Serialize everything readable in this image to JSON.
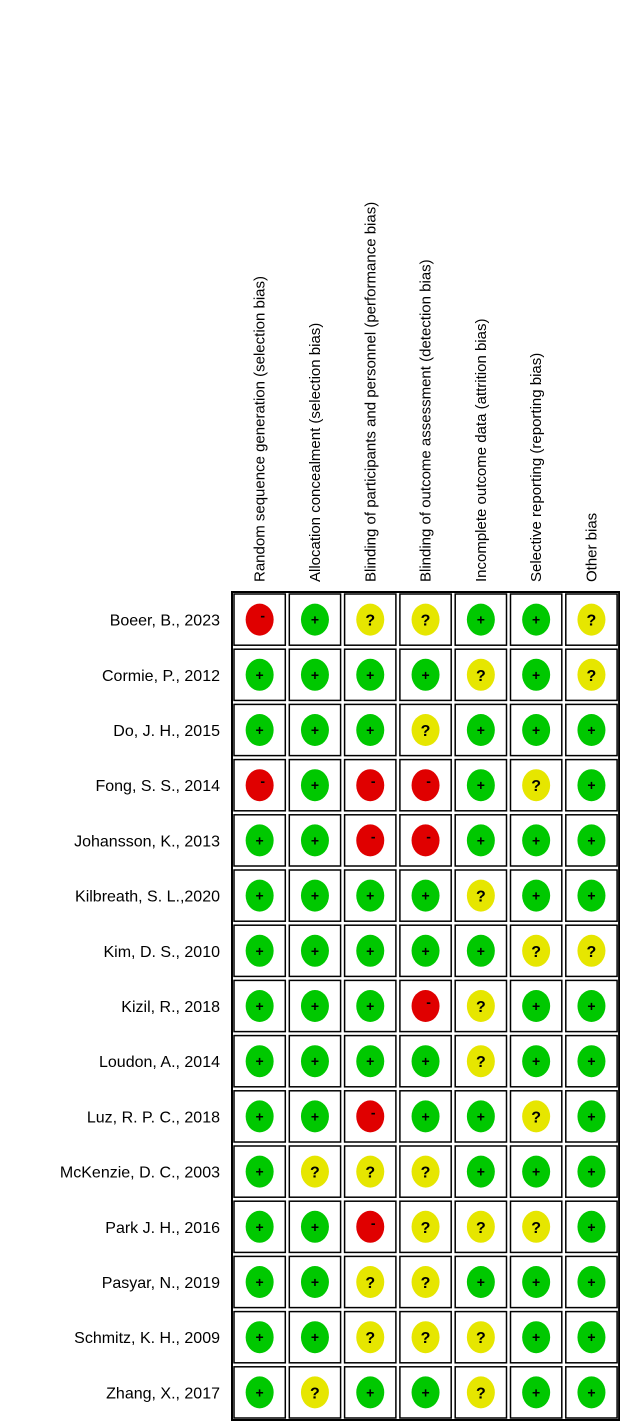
{
  "chart_data": {
    "type": "table",
    "columns": [
      "Random sequence generation (selection bias)",
      "Allocation concealment (selection bias)",
      "Blinding of participants and personnel (performance bias)",
      "Blinding of outcome assessment (detection bias)",
      "Incomplete outcome data (attrition bias)",
      "Selective reporting (reporting bias)",
      "Other bias"
    ],
    "rows": [
      {
        "study": "Boeer, B., 2023",
        "ratings": [
          "-",
          "+",
          "?",
          "?",
          "+",
          "+",
          "?"
        ]
      },
      {
        "study": "Cormie, P., 2012",
        "ratings": [
          "+",
          "+",
          "+",
          "+",
          "?",
          "+",
          "?"
        ]
      },
      {
        "study": "Do, J. H., 2015",
        "ratings": [
          "+",
          "+",
          "+",
          "?",
          "+",
          "+",
          "+"
        ]
      },
      {
        "study": "Fong, S. S., 2014",
        "ratings": [
          "-",
          "+",
          "-",
          "-",
          "+",
          "?",
          "+"
        ]
      },
      {
        "study": "Johansson, K., 2013",
        "ratings": [
          "+",
          "+",
          "-",
          "-",
          "+",
          "+",
          "+"
        ]
      },
      {
        "study": "Kilbreath, S. L.,2020",
        "ratings": [
          "+",
          "+",
          "+",
          "+",
          "?",
          "+",
          "+"
        ]
      },
      {
        "study": "Kim, D. S., 2010",
        "ratings": [
          "+",
          "+",
          "+",
          "+",
          "+",
          "?",
          "?"
        ]
      },
      {
        "study": "Kizil, R., 2018",
        "ratings": [
          "+",
          "+",
          "+",
          "-",
          "?",
          "+",
          "+"
        ]
      },
      {
        "study": "Loudon, A., 2014",
        "ratings": [
          "+",
          "+",
          "+",
          "+",
          "?",
          "+",
          "+"
        ]
      },
      {
        "study": "Luz, R. P. C., 2018",
        "ratings": [
          "+",
          "+",
          "-",
          "+",
          "+",
          "?",
          "+"
        ]
      },
      {
        "study": "McKenzie, D. C., 2003",
        "ratings": [
          "+",
          "?",
          "?",
          "?",
          "+",
          "+",
          "+"
        ]
      },
      {
        "study": "Park J. H., 2016",
        "ratings": [
          "+",
          "+",
          "-",
          "?",
          "?",
          "?",
          "+"
        ]
      },
      {
        "study": "Pasyar, N., 2019",
        "ratings": [
          "+",
          "+",
          "?",
          "?",
          "+",
          "+",
          "+"
        ]
      },
      {
        "study": "Schmitz, K. H., 2009",
        "ratings": [
          "+",
          "+",
          "?",
          "?",
          "?",
          "+",
          "+"
        ]
      },
      {
        "study": "Zhang, X., 2017",
        "ratings": [
          "+",
          "?",
          "+",
          "+",
          "?",
          "+",
          "+"
        ]
      }
    ],
    "rating_colors": {
      "+": "#00c800",
      "?": "#e6e600",
      "-": "#e00000"
    },
    "grid": true
  }
}
